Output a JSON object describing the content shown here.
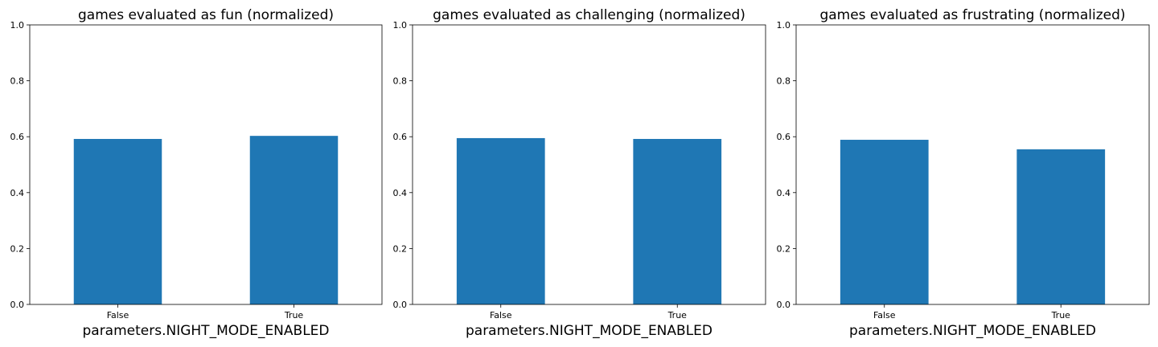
{
  "colors": {
    "bar": "#1f77b4",
    "axis": "#000000",
    "background": "#ffffff"
  },
  "chart_data": [
    {
      "type": "bar",
      "title": "games evaluated as fun (normalized)",
      "xlabel": "parameters.NIGHT_MODE_ENABLED",
      "ylabel": "",
      "categories": [
        "False",
        "True"
      ],
      "values": [
        0.592,
        0.603
      ],
      "ylim": [
        0,
        1
      ],
      "yticks": [
        "0.0",
        "0.2",
        "0.4",
        "0.6",
        "0.8",
        "1.0"
      ],
      "grid": false
    },
    {
      "type": "bar",
      "title": "games evaluated as challenging (normalized)",
      "xlabel": "parameters.NIGHT_MODE_ENABLED",
      "ylabel": "",
      "categories": [
        "False",
        "True"
      ],
      "values": [
        0.595,
        0.592
      ],
      "ylim": [
        0,
        1
      ],
      "yticks": [
        "0.0",
        "0.2",
        "0.4",
        "0.6",
        "0.8",
        "1.0"
      ],
      "grid": false
    },
    {
      "type": "bar",
      "title": "games evaluated as frustrating (normalized)",
      "xlabel": "parameters.NIGHT_MODE_ENABLED",
      "ylabel": "",
      "categories": [
        "False",
        "True"
      ],
      "values": [
        0.589,
        0.555
      ],
      "ylim": [
        0,
        1
      ],
      "yticks": [
        "0.0",
        "0.2",
        "0.4",
        "0.6",
        "0.8",
        "1.0"
      ],
      "grid": false
    }
  ]
}
